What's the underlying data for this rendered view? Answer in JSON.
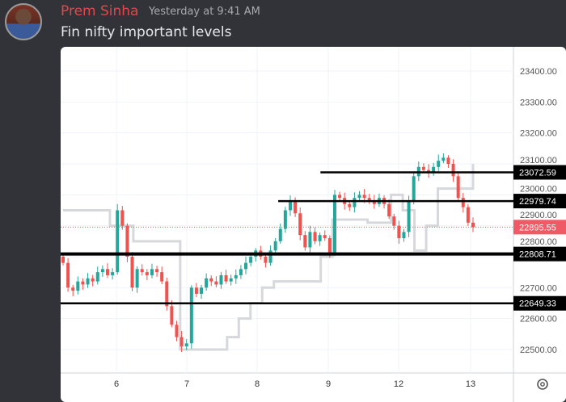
{
  "message": {
    "author": "Prem Sinha",
    "timestamp": "Yesterday at 9:41 AM",
    "text": "Fin nifty important levels"
  },
  "chart_data": {
    "type": "candlestick",
    "title": "",
    "y_ticks": [
      23400,
      23300,
      23200,
      23100,
      23000,
      22900,
      22800,
      22700,
      22600,
      22500
    ],
    "y_tick_labels": [
      "23400.00",
      "23300.00",
      "23200.00",
      "23100.00",
      "23000.00",
      "22900.00",
      "22800.00",
      "22700.00",
      "22600.00",
      "22500.00"
    ],
    "x_tick_labels": [
      "6",
      "7",
      "8",
      "9",
      "12",
      "13"
    ],
    "ylim": [
      22420,
      23480
    ],
    "levels": [
      {
        "label": "23072.59",
        "value": 23072.59,
        "from_session": 3.9
      },
      {
        "label": "22979.74",
        "value": 22979.74,
        "from_session": 3.3
      },
      {
        "label": "22808.71",
        "value": 22808.71,
        "from_session": 0
      },
      {
        "label": "22649.33",
        "value": 22649.33,
        "from_session": 0
      }
    ],
    "last_price": {
      "label": "22895.55",
      "value": 22895.55
    },
    "closes": [
      22780,
      22700,
      22690,
      22720,
      22710,
      22730,
      22720,
      22750,
      22760,
      22740,
      22750,
      22950,
      22900,
      22800,
      22700,
      22760,
      22750,
      22740,
      22760,
      22750,
      22720,
      22640,
      22580,
      22540,
      22510,
      22520,
      22700,
      22680,
      22700,
      22730,
      22720,
      22710,
      22740,
      22720,
      22730,
      22740,
      22760,
      22780,
      22800,
      22820,
      22800,
      22780,
      22820,
      22850,
      22890,
      22950,
      22980,
      22940,
      22870,
      22830,
      22880,
      22850,
      22870,
      22860,
      22810,
      23000,
      22990,
      22970,
      22960,
      22990,
      23000,
      22990,
      22980,
      22970,
      22990,
      22970,
      22930,
      22900,
      22860,
      22880,
      22980,
      23060,
      23090,
      23080,
      23070,
      23090,
      23110,
      23120,
      23100,
      23060,
      22990,
      22960,
      22910,
      22895.55
    ],
    "overlay_line": [
      22950,
      22950,
      22950,
      22950,
      22900,
      22900,
      22850,
      22850,
      22850,
      22850,
      22500,
      22500,
      22500,
      22500,
      22540,
      22600,
      22650,
      22700,
      22720,
      22720,
      22720,
      22720,
      22800,
      22920,
      22920,
      22920,
      22910,
      22910,
      23000,
      22950,
      22820,
      22900,
      23020,
      23020,
      23020,
      23100
    ]
  },
  "colors": {
    "up": "#26a69a",
    "down": "#ef5350",
    "overlay": "#d6d8dc",
    "last": "#f05a66"
  },
  "settings_icon": "gear-icon"
}
